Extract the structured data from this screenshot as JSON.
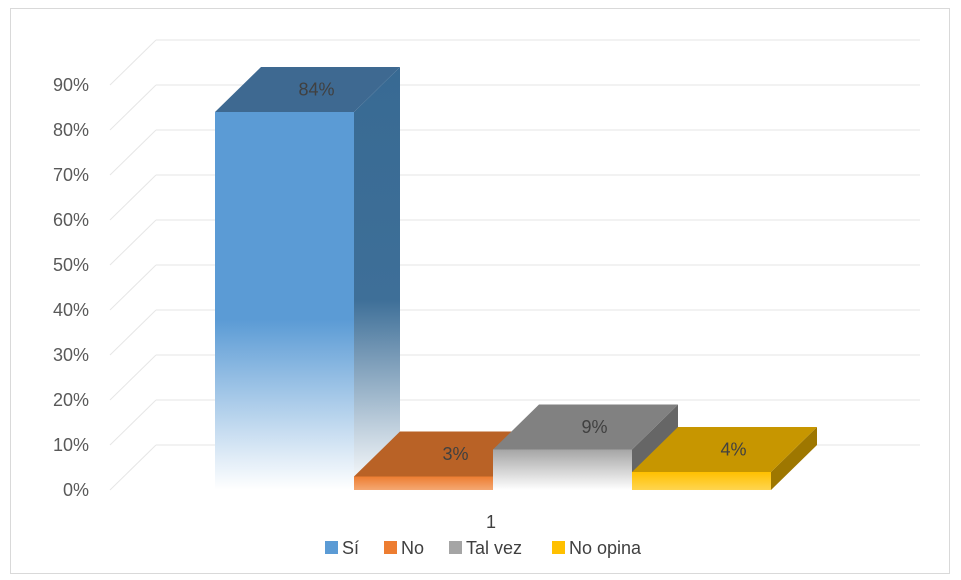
{
  "chart_data": {
    "type": "bar",
    "categories": [
      "1"
    ],
    "series": [
      {
        "name": "Sí",
        "values": [
          0.84
        ],
        "label": "84%",
        "color": "#5b9bd5"
      },
      {
        "name": "No",
        "values": [
          0.03
        ],
        "label": "3%",
        "color": "#ed7d31"
      },
      {
        "name": "Tal vez",
        "values": [
          0.09
        ],
        "label": "9%",
        "color": "#a5a5a5"
      },
      {
        "name": "No opina",
        "values": [
          0.04
        ],
        "label": "4%",
        "color": "#ffc000"
      }
    ],
    "y_ticks": [
      "0%",
      "10%",
      "20%",
      "30%",
      "40%",
      "50%",
      "60%",
      "70%",
      "80%",
      "90%"
    ],
    "ylim": [
      0,
      0.9
    ],
    "grid": true,
    "legend_position": "bottom",
    "three_d": true
  }
}
